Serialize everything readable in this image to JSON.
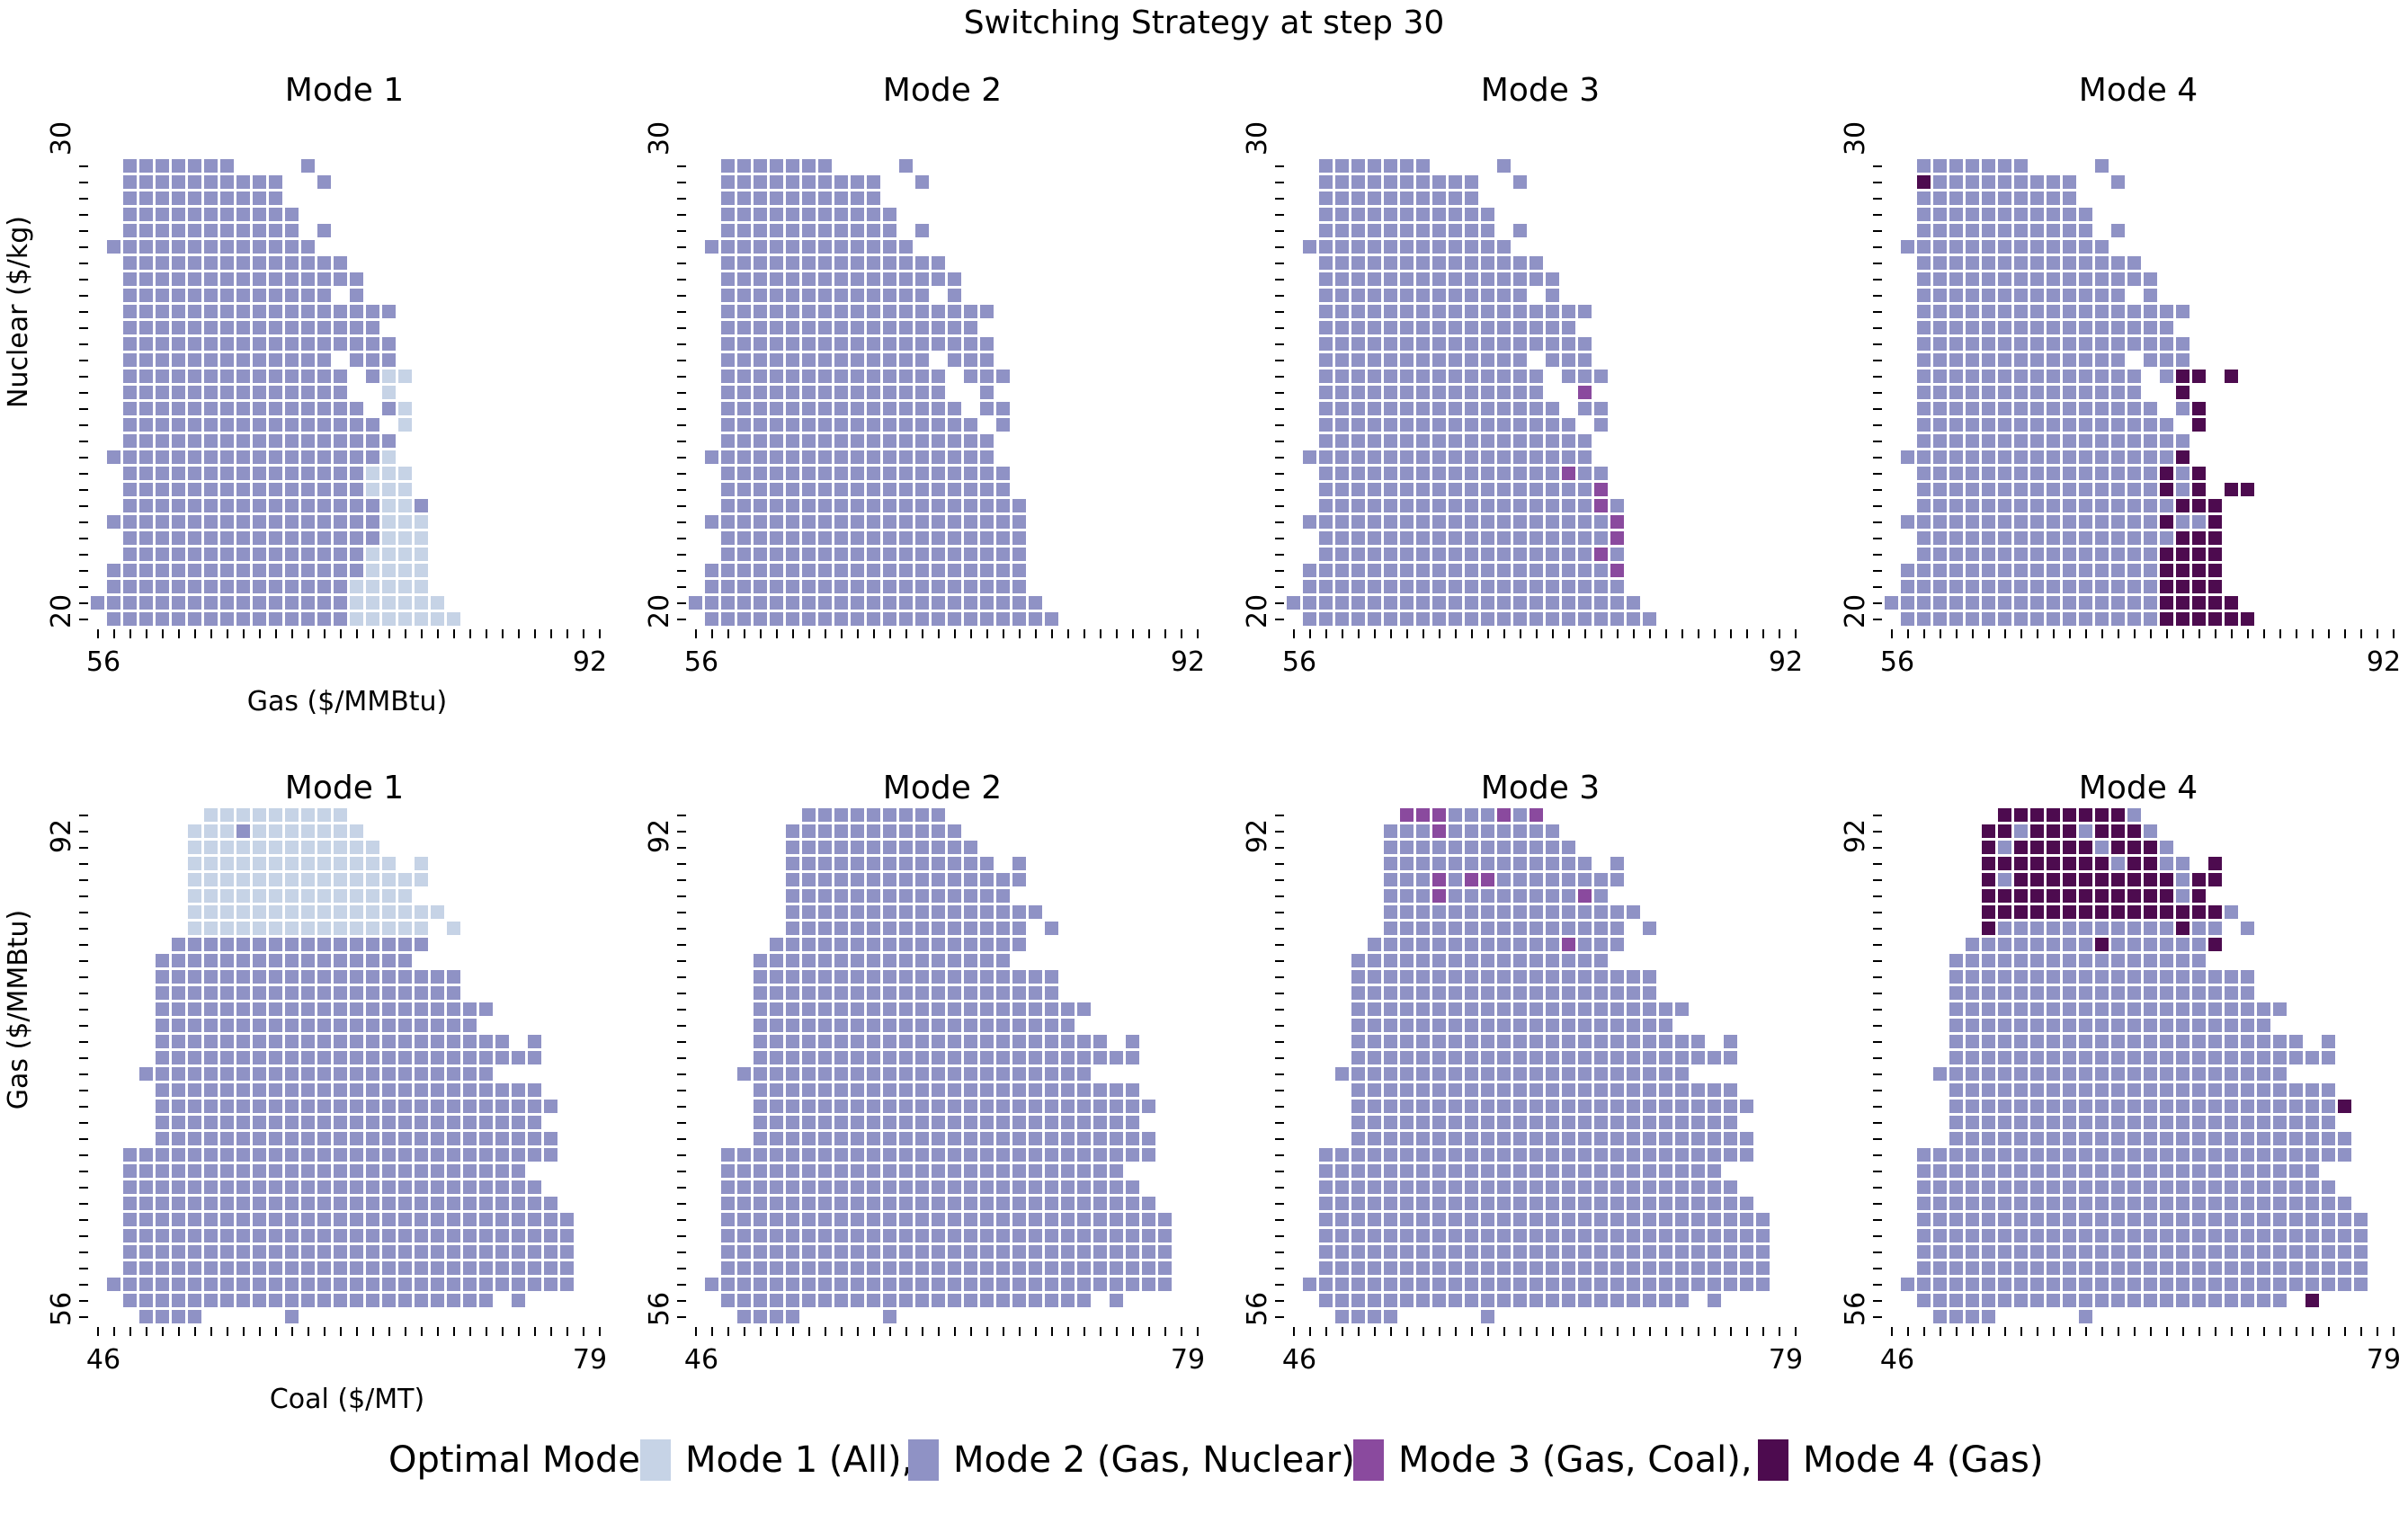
{
  "figure_title": "Switching Strategy at step 30",
  "colors": {
    "mode1": "#c6d3e6",
    "mode2": "#8f92c5",
    "mode3": "#8a4a9e",
    "mode4": "#4d0b4f"
  },
  "legend": {
    "label": "Optimal Mode:",
    "entries": [
      {
        "mode": 1,
        "text": "Mode 1 (All),"
      },
      {
        "mode": 2,
        "text": "Mode 2 (Gas, Nuclear),"
      },
      {
        "mode": 3,
        "text": "Mode 3 (Gas, Coal),"
      },
      {
        "mode": 4,
        "text": "Mode 4 (Gas)"
      }
    ]
  },
  "chart_data": [
    {
      "type": "heatmap",
      "id": "top-mode1",
      "title": "Mode 1",
      "xlabel": "Gas ($/MMBtu)",
      "ylabel": "Nuclear ($/kg)",
      "x_ticks": [
        "56",
        "92"
      ],
      "y_ticks": [
        "30",
        "20"
      ],
      "xlim": [
        56,
        92
      ],
      "ylim": [
        20,
        30
      ],
      "rows": [
        "..2222222....2.......",
        "..2222222222..2......",
        "..2222222222.........",
        "..22222222222........",
        "..22222222222.2......",
        ".2222222222222.......",
        "..22222222222222.....",
        "..222222222222222....",
        "..2222222222222.2....",
        "..22222222222222222..",
        "..2222222222222222...",
        "..22222222222222222..",
        "..2222222222222.222..",
        "..22222222222222.211.",
        "..22222222222222..1..",
        "..222222222222222.21.",
        "..2222222222222222.1.",
        "..22222222222222222..",
        ".222222222222222221..",
        "..222222222222222111.",
        "..222222222222222111.",
        "..2222222222222222112",
        ".22222222222222222111",
        "..2222222222222222111",
        "..2222222222222221111",
        ".22222222222222221111",
        ".22222222222222211111",
        "2222222222222222111111",
        ".2222222222222221111111"
      ]
    },
    {
      "type": "heatmap",
      "id": "top-mode2",
      "title": "Mode 2",
      "x_ticks": [
        "56",
        "92"
      ],
      "y_ticks": [
        "30",
        "20"
      ],
      "xlim": [
        56,
        92
      ],
      "ylim": [
        20,
        30
      ],
      "rows": [
        "..2222222....2.......",
        "..2222222222..2......",
        "..2222222222.........",
        "..22222222222........",
        "..22222222222.2......",
        ".2222222222222.......",
        "..22222222222222.....",
        "..222222222222222....",
        "..2222222222222.2....",
        "..22222222222222222..",
        "..2222222222222222...",
        "..22222222222222222..",
        "..2222222222222.222..",
        "..22222222222222.222.",
        "..22222222222222..2..",
        "..222222222222222.22.",
        "..2222222222222222.2.",
        "..22222222222222222..",
        ".222222222222222222..",
        "..222222222222222222.",
        "..222222222222222222.",
        "..2222222222222222222",
        ".22222222222222222222",
        "..2222222222222222222",
        "..2222222222222222222",
        ".22222222222222222222",
        ".22222222222222222222",
        "2222222222222222222222",
        ".2222222222222222222222"
      ]
    },
    {
      "type": "heatmap",
      "id": "top-mode3",
      "title": "Mode 3",
      "x_ticks": [
        "56",
        "92"
      ],
      "y_ticks": [
        "30",
        "20"
      ],
      "xlim": [
        56,
        92
      ],
      "ylim": [
        20,
        30
      ],
      "rows": [
        "..2222222....2.......",
        "..2222222222..2......",
        "..2222222222.........",
        "..22222222222........",
        "..22222222222.2......",
        ".2222222222222.......",
        "..22222222222222.....",
        "..222222222222222....",
        "..2222222222222.2....",
        "..22222222222222222..",
        "..2222222222222222...",
        "..22222222222222222..",
        "..2222222222222.222..",
        "..22222222222222.222.",
        "..22222222222222..3..",
        "..222222222222222.22.",
        "..2222222222222222.2.",
        "..22222222222222222..",
        ".222222222222222222..",
        "..222222222222222322.",
        "..222222222222222223.",
        "..2222222222222222232",
        ".22222222222222222223",
        "..2222222222222222223",
        "..2222222222222222232",
        ".22222222222222222223",
        ".22222222222222222222",
        "2222222222222222222222",
        ".2222222222222222222222"
      ]
    },
    {
      "type": "heatmap",
      "id": "top-mode4",
      "title": "Mode 4",
      "x_ticks": [
        "56",
        "92"
      ],
      "y_ticks": [
        "30",
        "20"
      ],
      "xlim": [
        56,
        92
      ],
      "ylim": [
        20,
        30
      ],
      "rows": [
        "..2222222....2.......",
        "..4222222222..2......",
        "..2222222222.........",
        "..22222222222........",
        "..22222222222.2......",
        ".2222222222222.......",
        "..22222222222222.....",
        "..222222222222222....",
        "..2222222222222.2....",
        "..22222222222222222..",
        "..2222222222222222...",
        "..22222222222222222..",
        "..2222222222222.222..",
        "..22222222222222.244.4",
        "..22222222222222..4..",
        "..222222222222222.24.",
        "..2222222222222222.4.",
        "..22222222222222222..",
        ".222222222222222224..",
        "..222222222222222424.",
        "..222222222222222424.44",
        "..2222222222222222444",
        ".22222222222222224224",
        "..2222222222222222444",
        "..2222222222222224444",
        ".22222222222222224444",
        ".22222222222222224444",
        "2222222222222222244444",
        ".2222222222222222444444"
      ]
    },
    {
      "type": "heatmap",
      "id": "bottom-mode1",
      "title": "Mode 1",
      "xlabel": "Coal ($/MT)",
      "ylabel": "Gas ($/MMBtu)",
      "x_ticks": [
        "46",
        "79"
      ],
      "y_ticks": [
        "92",
        "56"
      ],
      "xlim": [
        46,
        79
      ],
      "ylim": [
        56,
        92
      ],
      "rows": [
        ".......111111111.........",
        "......11121111111........",
        "......111111111111.......",
        "......1111111111111.1....",
        "......111111111111111....",
        "......11111111111111.....",
        "......1111111111111111...",
        "......111111111111111.1..",
        ".....2222222222222222....",
        "....2222222222222222.....",
        "....2222222222222222222..",
        "....2222222222222222222..",
        "....222222222222222222222..",
        "....22222222222222222222..",
        "....2222222222222222222222.2",
        "....222222222222222222222222",
        "...2222222222222222222222....",
        "....222222222222222222222222.",
        "....2222222222222222222222222.",
        "....222222222222222222222222.",
        "....2222222222222222222222222",
        "..222222222222222222222222222",
        "..2222222222222222222222222..",
        "..22222222222222222222222222.",
        "..222222222222222222222222222",
        "..2222222222222222222222222222",
        "..2222222222222222222222222222",
        "..2222222222222222222222222222",
        "..2222222222222222222222222222",
        ".22222222222222222222222222222",
        "..22222222222222222222222.2...",
        "...2222.....2................"
      ]
    },
    {
      "type": "heatmap",
      "id": "bottom-mode2",
      "title": "Mode 2",
      "x_ticks": [
        "46",
        "79"
      ],
      "y_ticks": [
        "92",
        "56"
      ],
      "xlim": [
        46,
        79
      ],
      "ylim": [
        56,
        92
      ],
      "rows": [
        ".......222222222.........",
        "......22222222222........",
        "......222222222222.......",
        "......2222222222222.2....",
        "......222222222222222....",
        "......22222222222222.....",
        "......2222222222222222...",
        "......222222222222222.2..",
        ".....2222222222222222....",
        "....2222222222222222.....",
        "....2222222222222222222..",
        "....2222222222222222222..",
        "....222222222222222222222..",
        "....22222222222222222222..",
        "....2222222222222222222222.2",
        "....222222222222222222222222",
        "...2222222222222222222222....",
        "....222222222222222222222222.",
        "....2222222222222222222222222.",
        "....222222222222222222222222.",
        "....2222222222222222222222222",
        "..222222222222222222222222222",
        "..2222222222222222222222222..",
        "..22222222222222222222222222.",
        "..222222222222222222222222222",
        "..2222222222222222222222222222",
        "..2222222222222222222222222222",
        "..2222222222222222222222222222",
        "..2222222222222222222222222222",
        ".22222222222222222222222222222",
        "..22222222222222222222222.2...",
        "...2222.....2................"
      ]
    },
    {
      "type": "heatmap",
      "id": "bottom-mode3",
      "title": "Mode 3",
      "x_ticks": [
        "46",
        "79"
      ],
      "y_ticks": [
        "92",
        "56"
      ],
      "xlim": [
        46,
        79
      ],
      "ylim": [
        56,
        92
      ],
      "rows": [
        ".......333222323.........",
        "......22232222222........",
        "......222222222222.......",
        "......2222222222222.2....",
        "......222323322222222....",
        "......22232222222232.....",
        "......2222222222222222...",
        "......222222222222222.2..",
        ".....2222222222223222....",
        "....2222222222222222.....",
        "....2222222222222222222..",
        "....2222222222222222222..",
        "....222222222222222222222..",
        "....22222222222222222222..",
        "....2222222222222222222222.2",
        "....222222222222222222222222",
        "...2222222222222222222222....",
        "....222222222222222222222222.",
        "....2222222222222222222222222.",
        "....222222222222222222222222.",
        "....2222222222222222222222222",
        "..222222222222222222222222222",
        "..2222222222222222222222222..",
        "..22222222222222222222222222.",
        "..222222222222222222222222222",
        "..2222222222222222222222222222",
        "..2222222222222222222222222222",
        "..2222222222222222222222222222",
        "..2222222222222222222222222222",
        ".22222222222222222222222222222",
        "..22222222222222222222222.2...",
        "...2222.....2................"
      ]
    },
    {
      "type": "heatmap",
      "id": "bottom-mode4",
      "title": "Mode 4",
      "x_ticks": [
        "46",
        "79"
      ],
      "y_ticks": [
        "92",
        "56"
      ],
      "xlim": [
        46,
        79
      ],
      "ylim": [
        56,
        92
      ],
      "rows": [
        ".......444444442.........",
        "......44244424442........",
        "......424444424442.......",
        "......4444444424422.4....",
        "......424444444444244....",
        "......44444444444424.....",
        "......4444444444444442...",
        "......422222222222422.2..",
        ".....2222222242222224....",
        "....2222222222222222.....",
        "....2222222222222222222..",
        "....2222222222222222222..",
        "....222222222222222222222..",
        "....22222222222222222222..",
        "....2222222222222222222222.2",
        "....222222222222222222222222",
        "...2222222222222222222222....",
        "....222222222222222222222222.",
        "....2222222222222222222222224.",
        "....222222222222222222222222.",
        "....2222222222222222222222222",
        "..222222222222222222222222222",
        "..2222222222222222222222222..",
        "..22222222222222222222222222.",
        "..222222222222222222222222222",
        "..2222222222222222222222222222",
        "..2222222222222222222222222222",
        "..2222222222222222222222222222",
        "..2222222222222222222222222222",
        ".22222222222222222222222222222",
        "..22222222222222222222222.4...",
        "...2222.....2................"
      ]
    }
  ]
}
